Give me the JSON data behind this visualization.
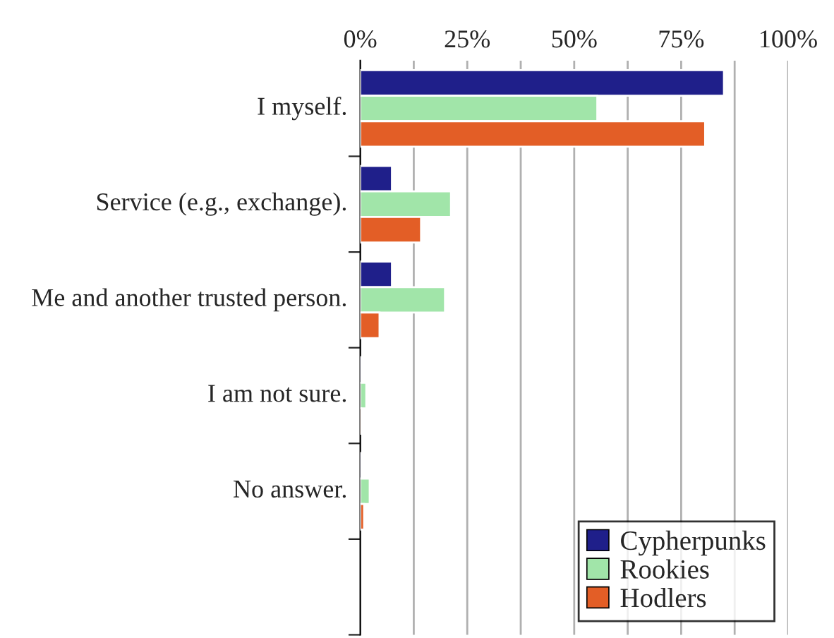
{
  "chart_data": {
    "type": "bar",
    "orientation": "horizontal",
    "categories": [
      "I myself.",
      "Service (e.g., exchange).",
      "Me and another trusted person.",
      "I am not sure.",
      "No answer.",
      null
    ],
    "series": [
      {
        "name": "Cypherpunks",
        "color": "#1f1f8a",
        "values": [
          85,
          7.4,
          7.4,
          0.2,
          0.2,
          null
        ]
      },
      {
        "name": "Rookies",
        "color": "#a1e5a9",
        "values": [
          55.4,
          21.2,
          19.8,
          1.4,
          2.2,
          null
        ]
      },
      {
        "name": "Hodlers",
        "color": "#e35e26",
        "values": [
          80.6,
          14.2,
          4.5,
          0.2,
          0.9,
          null
        ]
      }
    ],
    "xlim": [
      0,
      100
    ],
    "xticks": [
      {
        "value": 0,
        "label": "0%"
      },
      {
        "value": 12.5,
        "label": null
      },
      {
        "value": 25,
        "label": "25%"
      },
      {
        "value": 37.5,
        "label": null
      },
      {
        "value": 50,
        "label": "50%"
      },
      {
        "value": 62.5,
        "label": null
      },
      {
        "value": 75,
        "label": "75%"
      },
      {
        "value": 87.5,
        "label": null
      },
      {
        "value": 100,
        "label": "100%"
      }
    ],
    "grid": "x",
    "legend": "bottom right"
  }
}
